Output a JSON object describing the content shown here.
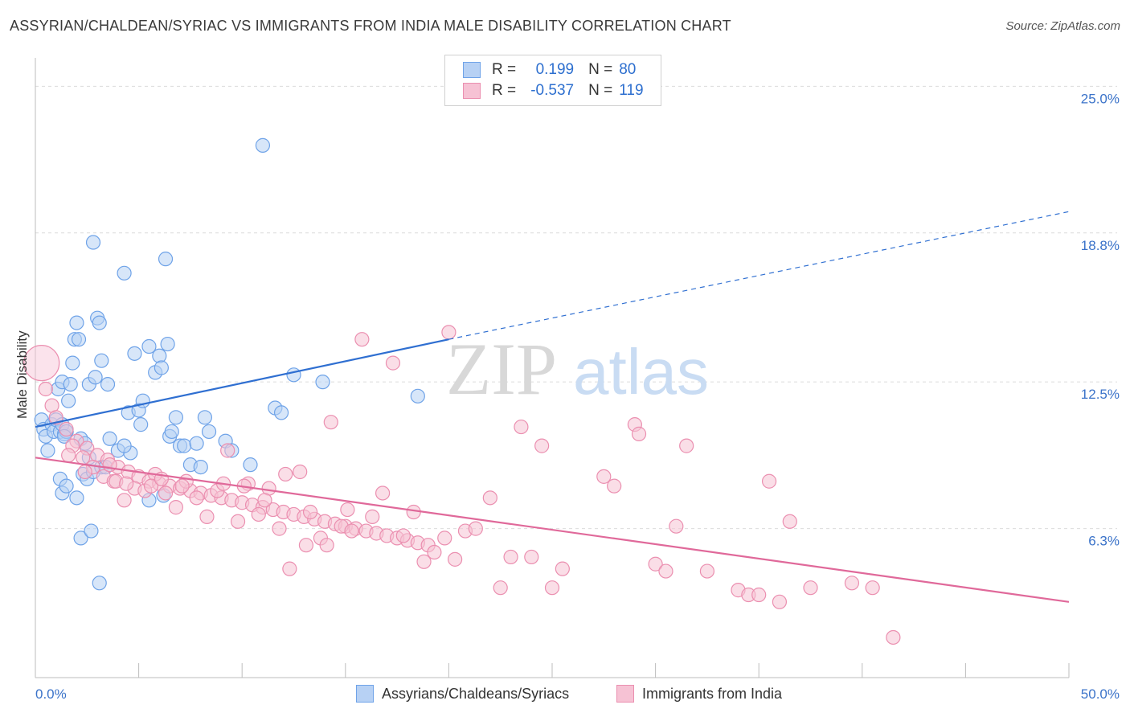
{
  "title": "ASSYRIAN/CHALDEAN/SYRIAC VS IMMIGRANTS FROM INDIA MALE DISABILITY CORRELATION CHART",
  "source": "Source: ZipAtlas.com",
  "watermark": "ZIPatlas",
  "legend": {
    "rows": [
      {
        "r_label": "R =",
        "r_value": "0.199",
        "n_label": "N =",
        "n_value": "80"
      },
      {
        "r_label": "R =",
        "r_value": "-0.537",
        "n_label": "N =",
        "n_value": "119"
      }
    ]
  },
  "chart_data": {
    "type": "scatter",
    "ylabel": "Male Disability",
    "xlim": [
      0,
      50
    ],
    "ylim": [
      0,
      26.2
    ],
    "x_tick_labels": [
      {
        "value": 0,
        "label": "0.0%"
      },
      {
        "value": 50,
        "label": "50.0%"
      }
    ],
    "y_tick_labels": [
      {
        "value": 6.3,
        "label": "6.3%"
      },
      {
        "value": 12.5,
        "label": "12.5%"
      },
      {
        "value": 18.8,
        "label": "18.8%"
      },
      {
        "value": 25.0,
        "label": "25.0%"
      }
    ],
    "series": [
      {
        "name": "Assyrians/Chaldeans/Syriacs",
        "color": "#6fa3e8",
        "fill": "#b7d1f4",
        "trend_color": "#2f6fd1",
        "trend": {
          "x0": 0,
          "y0": 10.6,
          "x1": 20,
          "y1": 14.3,
          "dash_to_x": 50,
          "dash_to_y": 19.7
        },
        "points": [
          [
            0.3,
            10.9
          ],
          [
            0.4,
            10.5
          ],
          [
            0.5,
            10.2
          ],
          [
            0.6,
            9.6
          ],
          [
            0.8,
            10.7
          ],
          [
            0.9,
            10.4
          ],
          [
            1.0,
            10.9
          ],
          [
            1.1,
            12.2
          ],
          [
            1.2,
            10.4
          ],
          [
            1.3,
            12.5
          ],
          [
            1.4,
            10.3
          ],
          [
            1.5,
            10.4
          ],
          [
            1.2,
            8.4
          ],
          [
            1.3,
            10.7
          ],
          [
            1.5,
            10.4
          ],
          [
            1.6,
            11.7
          ],
          [
            1.7,
            12.4
          ],
          [
            1.8,
            13.3
          ],
          [
            1.9,
            14.3
          ],
          [
            2.0,
            15.0
          ],
          [
            2.1,
            14.3
          ],
          [
            2.2,
            10.1
          ],
          [
            2.4,
            9.9
          ],
          [
            2.6,
            12.4
          ],
          [
            2.9,
            12.7
          ],
          [
            3.0,
            15.2
          ],
          [
            3.1,
            15.0
          ],
          [
            3.2,
            13.4
          ],
          [
            2.3,
            8.6
          ],
          [
            2.5,
            8.4
          ],
          [
            2.6,
            9.3
          ],
          [
            2.8,
            8.7
          ],
          [
            3.2,
            8.9
          ],
          [
            3.5,
            12.4
          ],
          [
            3.6,
            10.1
          ],
          [
            4.0,
            9.6
          ],
          [
            4.3,
            17.1
          ],
          [
            4.5,
            11.2
          ],
          [
            4.6,
            9.5
          ],
          [
            4.8,
            13.7
          ],
          [
            5.0,
            11.3
          ],
          [
            5.2,
            11.7
          ],
          [
            5.5,
            14.0
          ],
          [
            5.8,
            12.9
          ],
          [
            6.0,
            13.6
          ],
          [
            6.1,
            13.1
          ],
          [
            6.2,
            7.7
          ],
          [
            6.4,
            14.1
          ],
          [
            6.5,
            10.2
          ],
          [
            6.6,
            10.4
          ],
          [
            6.8,
            11.0
          ],
          [
            7.0,
            9.8
          ],
          [
            7.2,
            9.8
          ],
          [
            7.5,
            9.0
          ],
          [
            7.8,
            9.9
          ],
          [
            8.0,
            8.9
          ],
          [
            8.2,
            11.0
          ],
          [
            8.4,
            10.4
          ],
          [
            2.2,
            5.9
          ],
          [
            2.7,
            6.2
          ],
          [
            3.1,
            4.0
          ],
          [
            1.3,
            7.8
          ],
          [
            1.5,
            8.1
          ],
          [
            2.0,
            7.6
          ],
          [
            3.4,
            8.9
          ],
          [
            4.3,
            9.8
          ],
          [
            5.1,
            10.7
          ],
          [
            5.5,
            7.5
          ],
          [
            6.3,
            17.7
          ],
          [
            9.2,
            10.0
          ],
          [
            9.5,
            9.6
          ],
          [
            11.6,
            11.4
          ],
          [
            11.9,
            11.2
          ],
          [
            10.4,
            9.0
          ],
          [
            12.5,
            12.8
          ],
          [
            13.9,
            12.5
          ],
          [
            11.0,
            22.5
          ],
          [
            18.5,
            11.9
          ],
          [
            2.8,
            18.4
          ],
          [
            1.4,
            10.2
          ]
        ]
      },
      {
        "name": "Immigrants from India",
        "color": "#eb8fb0",
        "fill": "#f6c2d4",
        "trend_color": "#e0699a",
        "trend": {
          "x0": 0,
          "y0": 9.3,
          "x1": 50,
          "y1": 3.2
        },
        "points": [
          [
            0.3,
            13.3
          ],
          [
            0.5,
            12.2
          ],
          [
            0.8,
            11.5
          ],
          [
            1.0,
            11.0
          ],
          [
            1.5,
            10.5
          ],
          [
            2.0,
            10.0
          ],
          [
            2.5,
            9.7
          ],
          [
            3.0,
            9.4
          ],
          [
            3.5,
            9.2
          ],
          [
            4.0,
            8.9
          ],
          [
            4.5,
            8.7
          ],
          [
            5.0,
            8.5
          ],
          [
            5.5,
            8.3
          ],
          [
            6.0,
            8.2
          ],
          [
            6.5,
            8.1
          ],
          [
            7.0,
            8.0
          ],
          [
            7.5,
            7.9
          ],
          [
            8.0,
            7.8
          ],
          [
            8.5,
            7.7
          ],
          [
            9.0,
            7.6
          ],
          [
            9.5,
            7.5
          ],
          [
            10.0,
            7.4
          ],
          [
            10.5,
            7.3
          ],
          [
            11.0,
            7.2
          ],
          [
            11.5,
            7.1
          ],
          [
            12.0,
            7.0
          ],
          [
            12.5,
            6.9
          ],
          [
            13.0,
            6.8
          ],
          [
            13.5,
            6.7
          ],
          [
            14.0,
            6.6
          ],
          [
            14.5,
            6.5
          ],
          [
            15.0,
            6.4
          ],
          [
            15.5,
            6.3
          ],
          [
            16.0,
            6.2
          ],
          [
            16.5,
            6.1
          ],
          [
            17.0,
            6.0
          ],
          [
            17.5,
            5.9
          ],
          [
            18.0,
            5.8
          ],
          [
            18.5,
            5.7
          ],
          [
            19.0,
            5.6
          ],
          [
            1.8,
            9.8
          ],
          [
            2.3,
            9.3
          ],
          [
            2.8,
            8.9
          ],
          [
            3.3,
            8.5
          ],
          [
            3.8,
            8.3
          ],
          [
            4.3,
            7.5
          ],
          [
            4.8,
            8.0
          ],
          [
            5.3,
            7.9
          ],
          [
            5.8,
            8.6
          ],
          [
            6.3,
            7.8
          ],
          [
            6.8,
            7.2
          ],
          [
            7.3,
            8.3
          ],
          [
            7.8,
            7.6
          ],
          [
            8.3,
            6.8
          ],
          [
            8.8,
            7.9
          ],
          [
            9.3,
            9.6
          ],
          [
            9.8,
            6.6
          ],
          [
            10.3,
            8.2
          ],
          [
            10.8,
            6.9
          ],
          [
            11.3,
            8.0
          ],
          [
            11.8,
            6.3
          ],
          [
            12.3,
            4.6
          ],
          [
            12.8,
            8.7
          ],
          [
            13.3,
            7.0
          ],
          [
            13.8,
            5.9
          ],
          [
            14.3,
            10.8
          ],
          [
            14.8,
            6.4
          ],
          [
            15.3,
            6.2
          ],
          [
            15.8,
            14.3
          ],
          [
            16.3,
            6.8
          ],
          [
            16.8,
            7.8
          ],
          [
            17.3,
            13.3
          ],
          [
            17.8,
            6.0
          ],
          [
            18.3,
            7.0
          ],
          [
            18.8,
            4.9
          ],
          [
            19.3,
            5.3
          ],
          [
            19.8,
            5.9
          ],
          [
            20.3,
            5.0
          ],
          [
            20.8,
            6.2
          ],
          [
            21.3,
            6.3
          ],
          [
            22.0,
            7.6
          ],
          [
            22.5,
            3.8
          ],
          [
            23.0,
            5.1
          ],
          [
            23.5,
            10.6
          ],
          [
            24.0,
            5.1
          ],
          [
            24.5,
            9.8
          ],
          [
            25.0,
            3.8
          ],
          [
            25.5,
            4.6
          ],
          [
            27.5,
            8.5
          ],
          [
            28.0,
            8.1
          ],
          [
            29.0,
            10.7
          ],
          [
            29.2,
            10.3
          ],
          [
            30.0,
            4.8
          ],
          [
            30.5,
            4.5
          ],
          [
            31.0,
            6.4
          ],
          [
            31.5,
            9.8
          ],
          [
            32.5,
            4.5
          ],
          [
            34.0,
            3.7
          ],
          [
            34.5,
            3.5
          ],
          [
            35.0,
            3.5
          ],
          [
            35.5,
            8.3
          ],
          [
            36.0,
            3.2
          ],
          [
            36.5,
            6.6
          ],
          [
            37.5,
            3.8
          ],
          [
            39.5,
            4.0
          ],
          [
            40.5,
            3.8
          ],
          [
            41.5,
            1.7
          ],
          [
            20.0,
            14.6
          ],
          [
            3.6,
            9.0
          ],
          [
            2.4,
            8.7
          ],
          [
            3.9,
            8.3
          ],
          [
            1.6,
            9.4
          ],
          [
            4.4,
            8.2
          ],
          [
            5.6,
            8.1
          ],
          [
            6.1,
            8.4
          ],
          [
            7.1,
            8.1
          ],
          [
            9.1,
            8.2
          ],
          [
            10.1,
            8.1
          ],
          [
            11.1,
            7.5
          ],
          [
            12.1,
            8.6
          ],
          [
            13.1,
            5.6
          ],
          [
            14.1,
            5.6
          ],
          [
            15.1,
            7.1
          ]
        ]
      }
    ]
  }
}
